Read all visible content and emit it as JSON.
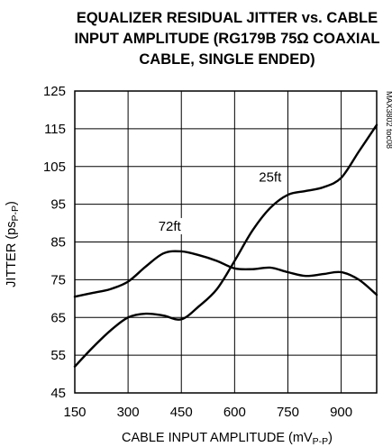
{
  "chart_data": {
    "type": "line",
    "title_lines": [
      "EQUALIZER RESIDUAL JITTER vs. CABLE",
      "INPUT AMPLITUDE (RG179B 75Ω COAXIAL",
      "CABLE, SINGLE ENDED)"
    ],
    "xlabel": {
      "main": "CABLE INPUT AMPLITUDE (mV",
      "sub": "P-P",
      "end": ")"
    },
    "ylabel": {
      "main": "JITTER (ps",
      "sub": "P-P",
      "end": ")"
    },
    "xlim": [
      150,
      1000
    ],
    "ylim": [
      45,
      125
    ],
    "xticks": [
      150,
      300,
      450,
      600,
      750,
      900
    ],
    "yticks": [
      45,
      55,
      65,
      75,
      85,
      95,
      105,
      115,
      125
    ],
    "grid": true,
    "series": [
      {
        "name": "72ft",
        "x": [
          150,
          200,
          250,
          300,
          350,
          400,
          450,
          500,
          550,
          600,
          650,
          700,
          750,
          800,
          850,
          900,
          950,
          1000
        ],
        "y": [
          70.5,
          71.5,
          72.5,
          74.5,
          78.5,
          82,
          82.5,
          81.5,
          80,
          78,
          77.8,
          78.2,
          77,
          76,
          76.5,
          77,
          75,
          71
        ]
      },
      {
        "name": "25ft",
        "x": [
          150,
          200,
          250,
          300,
          350,
          400,
          450,
          500,
          550,
          600,
          650,
          700,
          750,
          800,
          850,
          900,
          950,
          1000
        ],
        "y": [
          52,
          57,
          61.5,
          65,
          66,
          65.5,
          64.5,
          68,
          72.5,
          80,
          88,
          94,
          97.5,
          98.5,
          99.5,
          102,
          109,
          116
        ]
      }
    ],
    "annotations": [
      "72ft",
      "25ft"
    ],
    "figure_code": "MAX3802 toc08"
  }
}
